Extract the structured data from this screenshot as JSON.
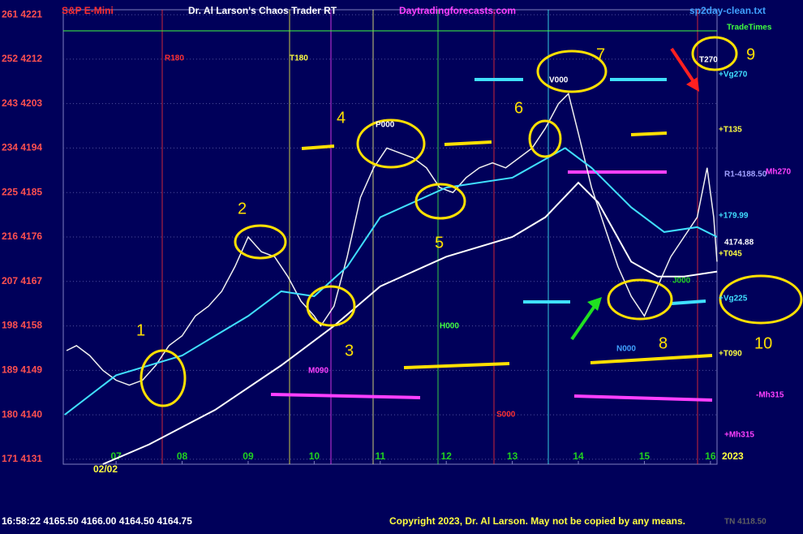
{
  "chart_data": {
    "type": "line",
    "title": "Dr. Al Larson's Chaos Trader RT",
    "instrument": "S&P E-Mini",
    "website": "Daytradingforecasts.com",
    "file": "sp2day-clean.txt",
    "status": "16:58:22  4165.50 4166.00 4164.50 4164.75",
    "copyright": "Copyright 2023, Dr. Al Larson. May not be copied by any means.",
    "footer_value": "TN 4118.50",
    "date_label": "02/02",
    "year_label": "2023",
    "xlim": [
      6.2,
      16.1
    ],
    "xticks": [
      {
        "value": 7,
        "label": "07"
      },
      {
        "value": 8,
        "label": "08"
      },
      {
        "value": 9,
        "label": "09"
      },
      {
        "value": 10,
        "label": "10"
      },
      {
        "value": 11,
        "label": "11"
      },
      {
        "value": 12,
        "label": "12"
      },
      {
        "value": 13,
        "label": "13"
      },
      {
        "value": 14,
        "label": "14"
      },
      {
        "value": 15,
        "label": "15"
      },
      {
        "value": 16,
        "label": "16"
      }
    ],
    "ylim": [
      4130,
      4222
    ],
    "yticks": [
      {
        "value": 4221,
        "label": "261 4221"
      },
      {
        "value": 4212,
        "label": "252 4212"
      },
      {
        "value": 4203,
        "label": "243 4203"
      },
      {
        "value": 4194,
        "label": "234 4194"
      },
      {
        "value": 4185,
        "label": "225 4185"
      },
      {
        "value": 4176,
        "label": "216 4176"
      },
      {
        "value": 4167,
        "label": "207 4167"
      },
      {
        "value": 4158,
        "label": "198 4158"
      },
      {
        "value": 4149,
        "label": "189 4149"
      },
      {
        "value": 4140,
        "label": "180 4140"
      },
      {
        "value": 4131,
        "label": "171 4131"
      }
    ],
    "grid": true,
    "series": [
      {
        "name": "price",
        "color": "#f0f0f0",
        "x": [
          6.25,
          6.4,
          6.6,
          6.8,
          7.0,
          7.2,
          7.4,
          7.6,
          7.8,
          8.0,
          8.2,
          8.4,
          8.6,
          8.8,
          9.0,
          9.2,
          9.4,
          9.6,
          9.8,
          10.0,
          10.1,
          10.3,
          10.5,
          10.7,
          10.9,
          11.1,
          11.3,
          11.5,
          11.7,
          11.9,
          12.1,
          12.3,
          12.5,
          12.7,
          12.9,
          13.1,
          13.3,
          13.5,
          13.7,
          13.85,
          14.0,
          14.2,
          14.4,
          14.6,
          14.8,
          15.0,
          15.2,
          15.4,
          15.6,
          15.8,
          15.95,
          16.05,
          16.1
        ],
        "values": [
          4153,
          4154,
          4152,
          4149,
          4147,
          4146,
          4147,
          4150,
          4154,
          4156,
          4160,
          4162,
          4165,
          4170,
          4176,
          4173,
          4172,
          4168,
          4163,
          4160,
          4158,
          4162,
          4172,
          4184,
          4190,
          4194,
          4193,
          4192,
          4190,
          4186,
          4185,
          4188,
          4190,
          4191,
          4190,
          4192,
          4194,
          4198,
          4203,
          4205,
          4197,
          4186,
          4178,
          4170,
          4164,
          4160,
          4166,
          4172,
          4176,
          4180,
          4190,
          4180,
          4171
        ]
      },
      {
        "name": "slow average",
        "color": "#ffffff",
        "x": [
          6.8,
          7.5,
          8.5,
          9.5,
          10.3,
          11.0,
          12.0,
          13.0,
          13.5,
          14.0,
          14.3,
          14.8,
          15.2,
          15.6,
          16.1
        ],
        "values": [
          4130,
          4134,
          4141,
          4150,
          4158,
          4166,
          4172,
          4176,
          4180,
          4187,
          4183,
          4171,
          4168,
          4168,
          4169
        ]
      },
      {
        "name": "medium average",
        "color": "#40e0ff",
        "x": [
          6.22,
          7.0,
          8.0,
          9.0,
          9.5,
          10.0,
          10.5,
          11.0,
          12.0,
          13.0,
          13.8,
          14.2,
          14.8,
          15.3,
          15.8,
          16.1
        ],
        "values": [
          4140,
          4148,
          4152,
          4160,
          4165,
          4164,
          4170,
          4180,
          4186,
          4188,
          4194,
          4190,
          4182,
          4177,
          4178,
          4176
        ]
      }
    ],
    "annotations": [
      "1",
      "2",
      "3",
      "4",
      "5",
      "6",
      "7",
      "8",
      "9",
      "10",
      "R180",
      "T180",
      "P000",
      "V000",
      "H000",
      "S000",
      "M090",
      "N000",
      "J000",
      "T270",
      "TradeTimes",
      "+Vg270",
      "+T135",
      "R1-4188.50",
      "Mh270",
      "+179.99",
      "4174.88",
      "+T045",
      "+Vg225",
      "+T090",
      "-Mh315",
      "+Mh315"
    ]
  }
}
